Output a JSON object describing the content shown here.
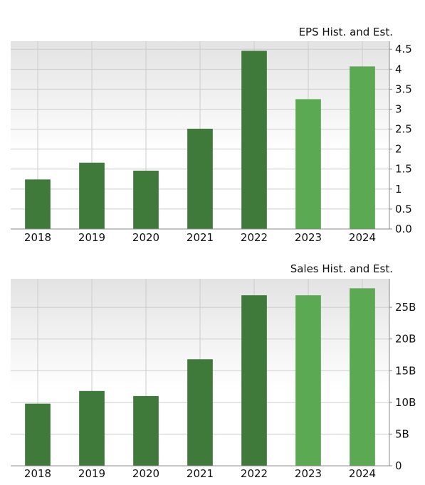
{
  "colors": {
    "historical": "#3f7a3b",
    "estimate": "#5ca953",
    "grid": "#cccccc",
    "plot_top": "#e3e3e3",
    "plot_bottom": "#ffffff",
    "axis": "#888888"
  },
  "chart_data": [
    {
      "type": "bar",
      "title": "EPS Hist. and Est.",
      "categories": [
        "2018",
        "2019",
        "2020",
        "2021",
        "2022",
        "2023",
        "2024"
      ],
      "values": [
        1.24,
        1.66,
        1.46,
        2.51,
        4.46,
        3.25,
        4.07
      ],
      "estimate_flags": [
        false,
        false,
        false,
        false,
        false,
        true,
        true
      ],
      "ylim": [
        0,
        4.7
      ],
      "yticks": [
        0,
        0.5,
        1,
        1.5,
        2,
        2.5,
        3,
        3.5,
        4,
        4.5
      ],
      "ytick_labels": [
        "0.0",
        "0.5",
        "1",
        "1.5",
        "2",
        "2.5",
        "3",
        "3.5",
        "4",
        "4.5"
      ],
      "y_axis_position": "right",
      "grid": true,
      "legend": "none"
    },
    {
      "type": "bar",
      "title": "Sales Hist. and Est.",
      "categories": [
        "2018",
        "2019",
        "2020",
        "2021",
        "2022",
        "2023",
        "2024"
      ],
      "values": [
        9.8,
        11.8,
        11.0,
        16.8,
        26.9,
        26.9,
        28.0
      ],
      "estimate_flags": [
        false,
        false,
        false,
        false,
        false,
        true,
        true
      ],
      "ylim": [
        0,
        29.5
      ],
      "yticks": [
        0,
        5,
        10,
        15,
        20,
        25
      ],
      "ytick_labels": [
        "0",
        "5B",
        "10B",
        "15B",
        "20B",
        "25B"
      ],
      "y_axis_position": "right",
      "grid": true,
      "legend": "none"
    }
  ]
}
